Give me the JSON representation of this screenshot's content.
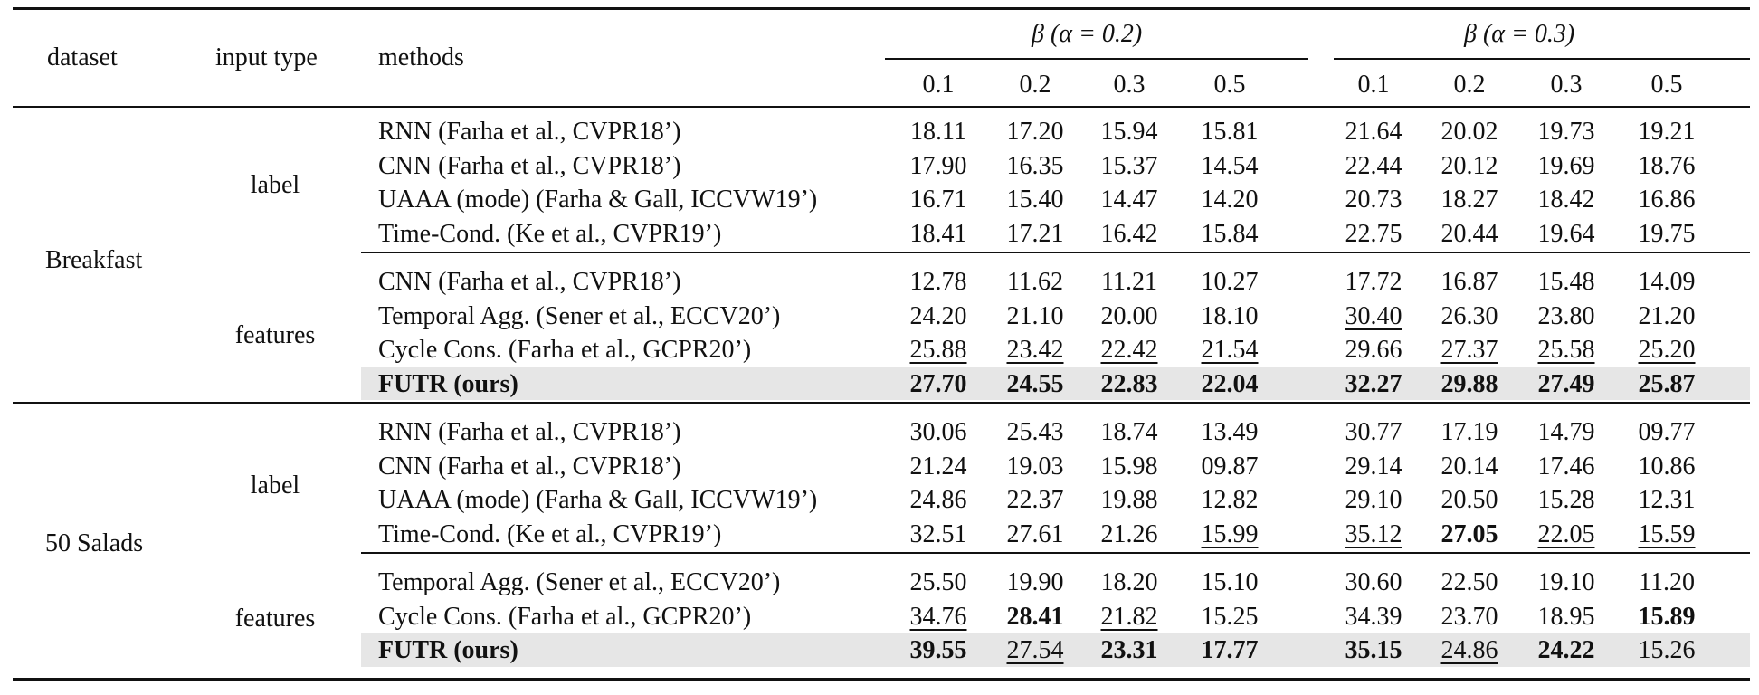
{
  "header": {
    "dataset": "dataset",
    "input_type": "input type",
    "methods": "methods",
    "group1": "β (α = 0.2)",
    "group2": "β (α = 0.3)",
    "betas": [
      "0.1",
      "0.2",
      "0.3",
      "0.5",
      "0.1",
      "0.2",
      "0.3",
      "0.5"
    ]
  },
  "datasets": [
    {
      "name": "Breakfast",
      "groups": [
        {
          "input_type": "label",
          "rows": [
            {
              "method": "RNN (Farha et al., CVPR18’)",
              "values": [
                "18.11",
                "17.20",
                "15.94",
                "15.81",
                "21.64",
                "20.02",
                "19.73",
                "19.21"
              ]
            },
            {
              "method": "CNN (Farha et al., CVPR18’)",
              "values": [
                "17.90",
                "16.35",
                "15.37",
                "14.54",
                "22.44",
                "20.12",
                "19.69",
                "18.76"
              ]
            },
            {
              "method": "UAAA (mode) (Farha & Gall, ICCVW19’)",
              "values": [
                "16.71",
                "15.40",
                "14.47",
                "14.20",
                "20.73",
                "18.27",
                "18.42",
                "16.86"
              ]
            },
            {
              "method": "Time-Cond. (Ke et al., CVPR19’)",
              "values": [
                "18.41",
                "17.21",
                "16.42",
                "15.84",
                "22.75",
                "20.44",
                "19.64",
                "19.75"
              ]
            }
          ]
        },
        {
          "input_type": "features",
          "rows": [
            {
              "method": "CNN (Farha et al., CVPR18’)",
              "values": [
                "12.78",
                "11.62",
                "11.21",
                "10.27",
                "17.72",
                "16.87",
                "15.48",
                "14.09"
              ]
            },
            {
              "method": "Temporal Agg. (Sener et al., ECCV20’)",
              "values": [
                "24.20",
                "21.10",
                "20.00",
                "18.10",
                "30.40",
                "26.30",
                "23.80",
                "21.20"
              ],
              "underline": [
                4
              ]
            },
            {
              "method": "Cycle Cons. (Farha et al., GCPR20’)",
              "values": [
                "25.88",
                "23.42",
                "22.42",
                "21.54",
                "29.66",
                "27.37",
                "25.58",
                "25.20"
              ],
              "underline": [
                0,
                1,
                2,
                3,
                5,
                6,
                7
              ]
            },
            {
              "method": "FUTR (ours)",
              "values": [
                "27.70",
                "24.55",
                "22.83",
                "22.04",
                "32.27",
                "29.88",
                "27.49",
                "25.87"
              ],
              "ours": true,
              "bold": [
                0,
                1,
                2,
                3,
                4,
                5,
                6,
                7
              ]
            }
          ]
        }
      ]
    },
    {
      "name": "50 Salads",
      "groups": [
        {
          "input_type": "label",
          "rows": [
            {
              "method": "RNN (Farha et al., CVPR18’)",
              "values": [
                "30.06",
                "25.43",
                "18.74",
                "13.49",
                "30.77",
                "17.19",
                "14.79",
                "09.77"
              ]
            },
            {
              "method": "CNN (Farha et al., CVPR18’)",
              "values": [
                "21.24",
                "19.03",
                "15.98",
                "09.87",
                "29.14",
                "20.14",
                "17.46",
                "10.86"
              ]
            },
            {
              "method": "UAAA (mode) (Farha & Gall, ICCVW19’)",
              "values": [
                "24.86",
                "22.37",
                "19.88",
                "12.82",
                "29.10",
                "20.50",
                "15.28",
                "12.31"
              ]
            },
            {
              "method": "Time-Cond. (Ke et al., CVPR19’)",
              "values": [
                "32.51",
                "27.61",
                "21.26",
                "15.99",
                "35.12",
                "27.05",
                "22.05",
                "15.59"
              ],
              "underline": [
                3,
                4,
                6,
                7
              ],
              "bold": [
                5
              ]
            }
          ]
        },
        {
          "input_type": "features",
          "rows": [
            {
              "method": "Temporal Agg. (Sener et al., ECCV20’)",
              "values": [
                "25.50",
                "19.90",
                "18.20",
                "15.10",
                "30.60",
                "22.50",
                "19.10",
                "11.20"
              ]
            },
            {
              "method": "Cycle Cons. (Farha et al., GCPR20’)",
              "values": [
                "34.76",
                "28.41",
                "21.82",
                "15.25",
                "34.39",
                "23.70",
                "18.95",
                "15.89"
              ],
              "underline": [
                0,
                2
              ],
              "bold": [
                1,
                7
              ]
            },
            {
              "method": "FUTR (ours)",
              "values": [
                "39.55",
                "27.54",
                "23.31",
                "17.77",
                "35.15",
                "24.86",
                "24.22",
                "15.26"
              ],
              "ours": true,
              "bold": [
                0,
                2,
                3,
                4,
                6
              ],
              "underline": [
                1,
                5
              ]
            }
          ]
        }
      ]
    }
  ]
}
